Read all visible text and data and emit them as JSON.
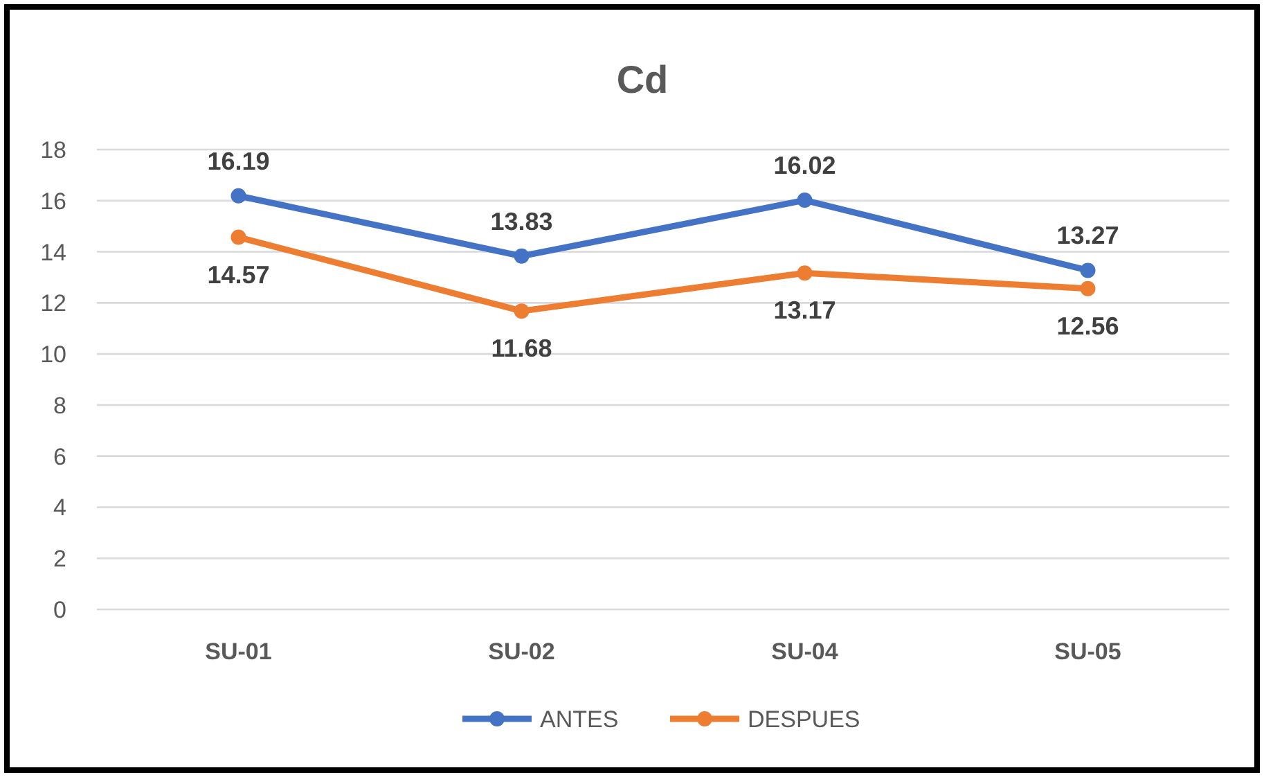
{
  "chart_data": {
    "type": "line",
    "title": "Cd",
    "categories": [
      "SU-01",
      "SU-02",
      "SU-04",
      "SU-05"
    ],
    "series": [
      {
        "name": "ANTES",
        "color": "#4472c4",
        "values": [
          16.19,
          13.83,
          16.02,
          13.27
        ]
      },
      {
        "name": "DESPUES",
        "color": "#ed7d31",
        "values": [
          14.57,
          11.68,
          13.17,
          12.56
        ]
      }
    ],
    "ylim": [
      0,
      18
    ],
    "yticks": [
      0,
      2,
      4,
      6,
      8,
      10,
      12,
      14,
      16,
      18
    ],
    "grid": "y",
    "legend": "bottom",
    "marker": "circle",
    "data_labels": true
  }
}
